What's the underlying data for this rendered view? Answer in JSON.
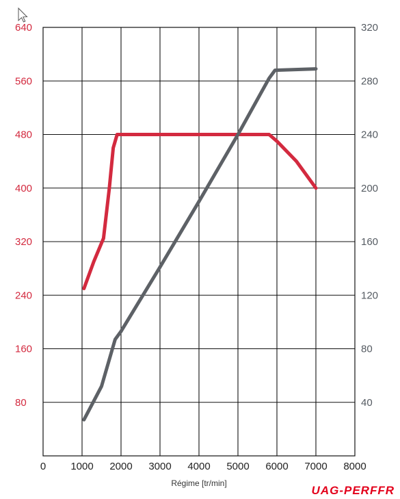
{
  "chart_data": {
    "type": "line",
    "title": "",
    "xlabel": "Régime [tr/min]",
    "ylabel_left": "",
    "ylabel_right": "",
    "xlim": [
      0,
      8000
    ],
    "ylim_left": [
      0,
      640
    ],
    "ylim_right": [
      0,
      320
    ],
    "x_ticks": [
      "0",
      "1000",
      "2000",
      "3000",
      "4000",
      "5000",
      "6000",
      "7000",
      "8000"
    ],
    "y_ticks_left": [
      "80",
      "160",
      "240",
      "320",
      "400",
      "480",
      "560",
      "640"
    ],
    "y_ticks_right": [
      "40",
      "80",
      "120",
      "160",
      "200",
      "240",
      "280",
      "320"
    ],
    "grid": true,
    "legend": "none",
    "series": [
      {
        "axis": "left",
        "color": "#d32a3f",
        "x": [
          1050,
          1300,
          1550,
          1700,
          1800,
          1900,
          2000,
          3000,
          4000,
          5000,
          5800,
          6000,
          6500,
          7000
        ],
        "values": [
          250,
          290,
          325,
          400,
          460,
          480,
          480,
          480,
          480,
          480,
          480,
          470,
          440,
          400
        ]
      },
      {
        "axis": "right",
        "color": "#5d6166",
        "x": [
          1050,
          1500,
          1850,
          2000,
          3000,
          4000,
          5000,
          5800,
          5950,
          7000
        ],
        "values": [
          27,
          52,
          87,
          93,
          141,
          190,
          240,
          282,
          288,
          289
        ]
      }
    ]
  },
  "watermark": "UAG-PERFFR"
}
